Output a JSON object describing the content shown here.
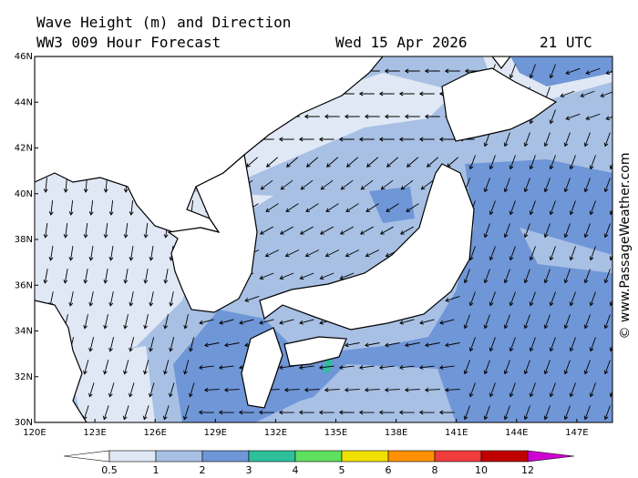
{
  "header": {
    "title": "Wave Height (m) and Direction",
    "forecast": "WW3 009 Hour Forecast",
    "date": "Wed 15 Apr 2026",
    "time": "21 UTC"
  },
  "map": {
    "lat_labels": [
      "46N",
      "44N",
      "42N",
      "40N",
      "38N",
      "36N",
      "34N",
      "32N",
      "30N"
    ],
    "lon_labels": [
      "120E",
      "123E",
      "126E",
      "129E",
      "132E",
      "135E",
      "138E",
      "141E",
      "144E",
      "147E"
    ]
  },
  "colorbar": {
    "labels": [
      "0.5",
      "1",
      "2",
      "3",
      "4",
      "5",
      "6",
      "8",
      "10",
      "12"
    ]
  },
  "watermark": "© www.PassageWeather.com"
}
